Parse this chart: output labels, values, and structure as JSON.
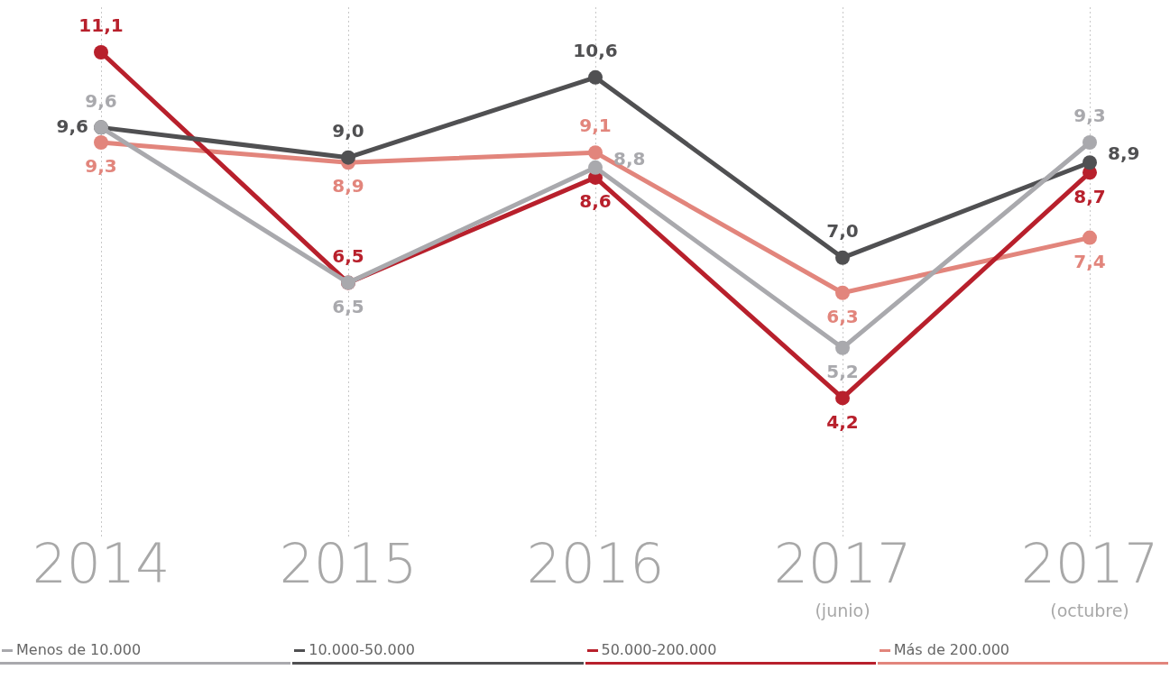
{
  "chart_data": {
    "type": "line",
    "categories": [
      "2014",
      "2015",
      "2016",
      "2017 (junio)",
      "2017 (octubre)"
    ],
    "series": [
      {
        "name": "Menos de 10.000",
        "color": "#a9a9ad",
        "values": [
          9.6,
          6.5,
          8.8,
          5.2,
          9.3
        ],
        "value_labels": [
          "9,6",
          "6,5",
          "8,8",
          "5,2",
          "9,3"
        ]
      },
      {
        "name": "10.000-50.000",
        "color": "#505052",
        "values": [
          9.6,
          9.0,
          10.6,
          7.0,
          8.9
        ],
        "value_labels": [
          "9,6",
          "9,0",
          "10,6",
          "7,0",
          "8,9"
        ]
      },
      {
        "name": "50.000-200.000",
        "color": "#b8202c",
        "values": [
          11.1,
          6.5,
          8.6,
          4.2,
          8.7
        ],
        "value_labels": [
          "11,1",
          "6,5",
          "8,6",
          "4,2",
          "8,7"
        ]
      },
      {
        "name": "Más de 200.000",
        "color": "#e2857c",
        "values": [
          9.3,
          8.9,
          9.1,
          6.3,
          7.4
        ],
        "value_labels": [
          "9,3",
          "8,9",
          "9,1",
          "6,3",
          "7,4"
        ]
      }
    ],
    "ylim": [
      1.4,
      12
    ],
    "grid": "x",
    "legend": "bottom",
    "marker": "circle",
    "line_style": "solid",
    "tick_labels": "x"
  }
}
